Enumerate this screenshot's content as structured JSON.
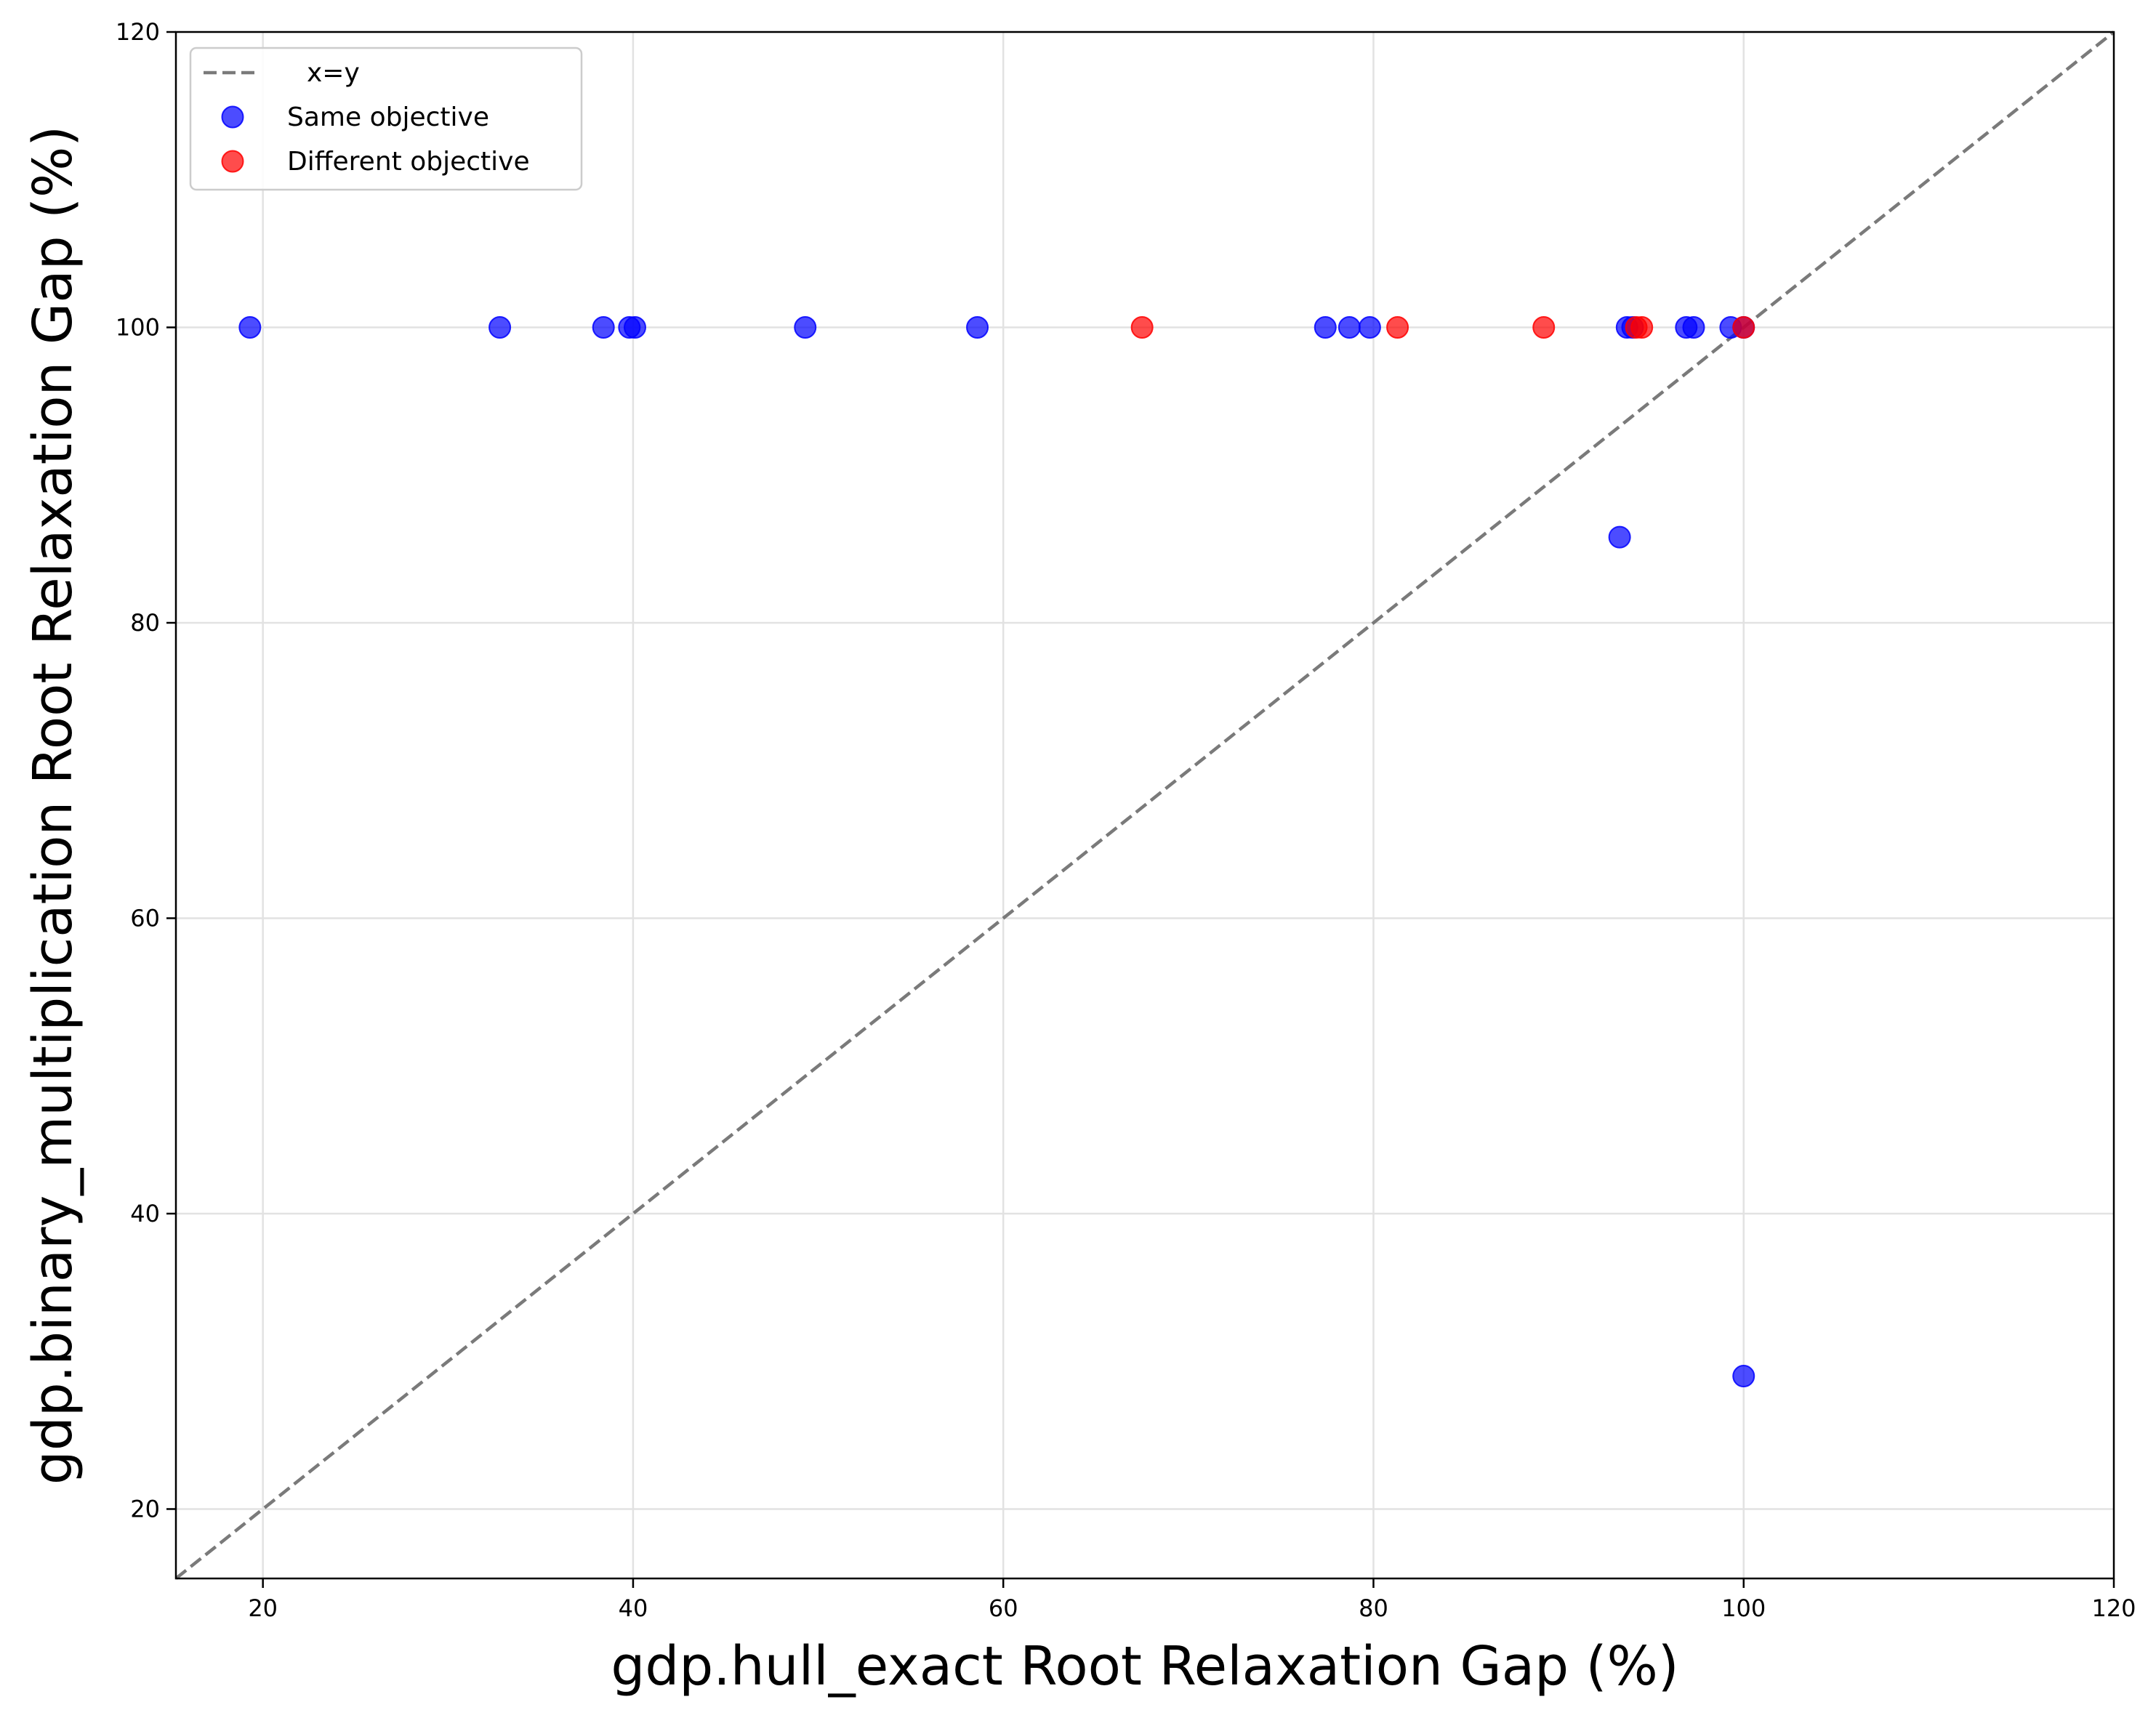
{
  "chart_data": {
    "type": "scatter",
    "title": "",
    "xlabel": "gdp.hull_exact Root Relaxation Gap (%)",
    "ylabel": "gdp.binary_multiplication Root Relaxation Gap (%)",
    "xlim": [
      15.3,
      120
    ],
    "ylim": [
      15.3,
      120
    ],
    "xticks": [
      20,
      40,
      60,
      80,
      100,
      120
    ],
    "yticks": [
      20,
      40,
      60,
      80,
      100,
      120
    ],
    "grid": true,
    "legend_position": "top-left",
    "reference_line": {
      "name": "x=y",
      "style": "dashed",
      "color": "#7a7a7a"
    },
    "series": [
      {
        "name": "Same objective",
        "color": "#0000ff",
        "points": [
          [
            19.3,
            100
          ],
          [
            32.8,
            100
          ],
          [
            38.4,
            100
          ],
          [
            39.8,
            100
          ],
          [
            40.1,
            100
          ],
          [
            49.3,
            100
          ],
          [
            58.6,
            100
          ],
          [
            77.4,
            100
          ],
          [
            78.7,
            100
          ],
          [
            79.8,
            100
          ],
          [
            93.7,
            100
          ],
          [
            94.0,
            100
          ],
          [
            96.9,
            100
          ],
          [
            97.3,
            100
          ],
          [
            99.3,
            100
          ],
          [
            100,
            100
          ],
          [
            93.3,
            85.8
          ],
          [
            100,
            29.0
          ]
        ]
      },
      {
        "name": "Different objective",
        "color": "#ff0000",
        "points": [
          [
            67.5,
            100
          ],
          [
            81.3,
            100
          ],
          [
            89.2,
            100
          ],
          [
            94.2,
            100
          ],
          [
            94.5,
            100
          ],
          [
            100,
            100
          ]
        ]
      }
    ]
  }
}
